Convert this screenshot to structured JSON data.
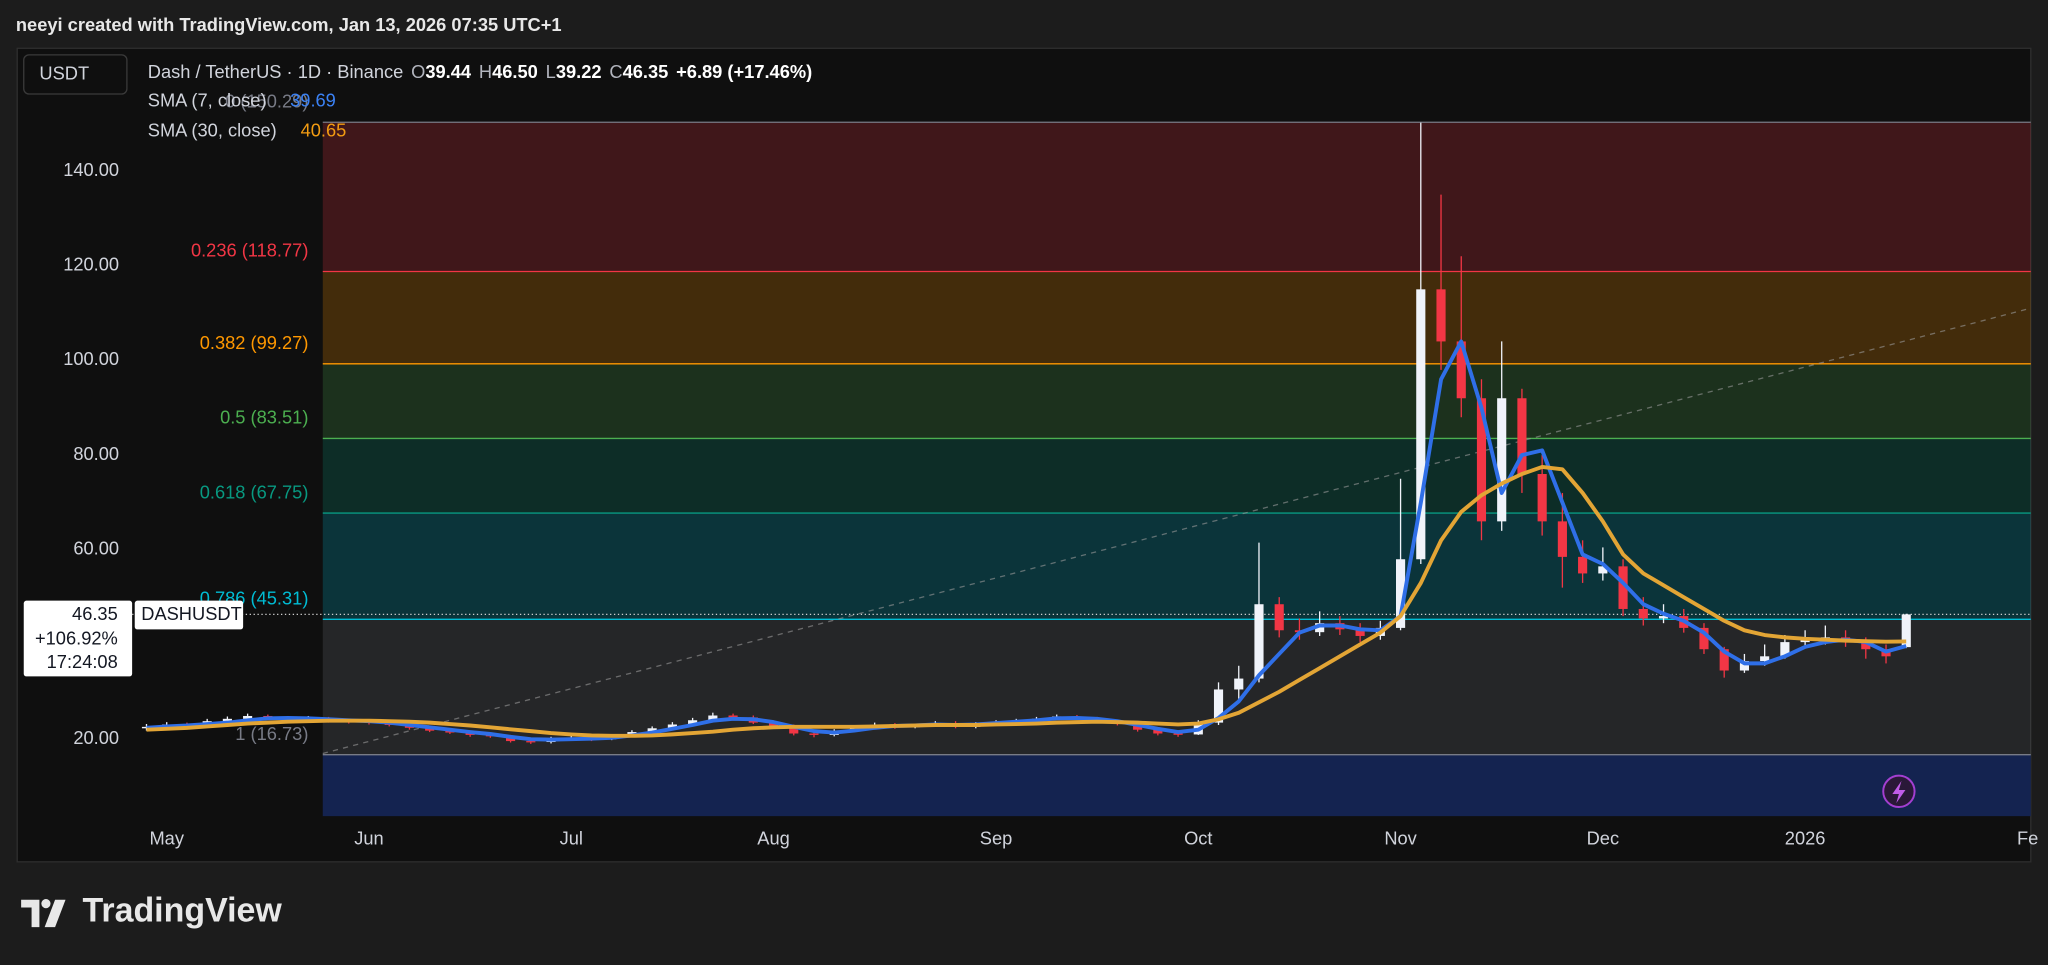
{
  "header": {
    "attribution": "neeyi created with TradingView.com, Jan 13, 2026 07:35 UTC+1"
  },
  "brand": "TradingView",
  "chart_data": {
    "type": "candlestick",
    "currency": "USDT",
    "title": "Dash / TetherUS · 1D · Binance",
    "ohlc_legend": [
      {
        "key": "O",
        "value": "39.44"
      },
      {
        "key": "H",
        "value": "46.50"
      },
      {
        "key": "L",
        "value": "39.22"
      },
      {
        "key": "C",
        "value": "46.35"
      }
    ],
    "change": "+6.89 (+17.46%)",
    "categories": [
      null,
      "May",
      null,
      null,
      null,
      null,
      null,
      null,
      null,
      null,
      null,
      "Jun",
      null,
      null,
      null,
      null,
      null,
      null,
      null,
      null,
      null,
      "Jul",
      null,
      null,
      null,
      null,
      null,
      null,
      null,
      null,
      null,
      "Aug",
      null,
      null,
      null,
      null,
      null,
      null,
      null,
      null,
      null,
      null,
      "Sep",
      null,
      null,
      null,
      null,
      null,
      null,
      null,
      null,
      null,
      "Oct",
      null,
      null,
      null,
      null,
      null,
      null,
      null,
      null,
      null,
      "Nov",
      null,
      null,
      null,
      null,
      null,
      null,
      null,
      null,
      null,
      "Dec",
      null,
      null,
      null,
      null,
      null,
      null,
      null,
      null,
      null,
      "2026",
      null,
      null,
      null,
      null,
      null,
      null,
      null,
      null,
      null,
      null,
      "Fe"
    ],
    "candles": {
      "name": "DASHUSDT",
      "up_color": "#f0f3fa",
      "down_color": "#f23645",
      "open": [
        22.3,
        22.6,
        23.1,
        22.9,
        23.8,
        24.3,
        24.9,
        24.6,
        24.2,
        24.4,
        23.9,
        23.7,
        23.5,
        23.0,
        22.4,
        21.8,
        21.4,
        20.9,
        20.6,
        19.6,
        19.4,
        20.1,
        20.3,
        20.0,
        20.6,
        21.5,
        22.3,
        23.1,
        24.0,
        25.0,
        24.6,
        23.5,
        22.8,
        21.2,
        20.9,
        21.7,
        22.6,
        23.0,
        22.5,
        22.9,
        23.4,
        22.6,
        23.3,
        23.6,
        23.9,
        24.3,
        24.8,
        24.4,
        23.8,
        23.2,
        22.0,
        21.2,
        21.0,
        23.5,
        30.5,
        32.8,
        48.5,
        43.0,
        42.6,
        44.5,
        43.2,
        41.8,
        43.5,
        58.0,
        115.0,
        104.0,
        92.0,
        66.0,
        92.0,
        76.0,
        66.0,
        58.5,
        55.0,
        56.5,
        47.5,
        45.5,
        46.0,
        43.5,
        39.0,
        34.5,
        36.5,
        37.5,
        40.5,
        41.0,
        41.5,
        40.5,
        39.0,
        39.44,
        null,
        null,
        null,
        null,
        null,
        null
      ],
      "high": [
        23.2,
        23.6,
        23.5,
        24.3,
        24.8,
        25.4,
        25.2,
        24.9,
        24.9,
        24.7,
        24.3,
        24.1,
        23.8,
        23.3,
        22.8,
        22.2,
        21.8,
        21.3,
        20.9,
        20.1,
        20.5,
        20.8,
        20.7,
        21.0,
        21.9,
        22.7,
        23.6,
        24.5,
        25.6,
        25.4,
        25.0,
        23.9,
        23.1,
        21.6,
        22.1,
        22.9,
        23.5,
        23.4,
        23.2,
        23.8,
        23.8,
        23.6,
        24.0,
        24.3,
        24.7,
        25.2,
        25.1,
        24.7,
        24.1,
        23.5,
        22.4,
        21.6,
        24.0,
        32.0,
        35.5,
        61.5,
        50.0,
        45.5,
        47.0,
        46.0,
        44.5,
        45.0,
        75.0,
        150.2,
        135.0,
        122.0,
        96.0,
        104.0,
        94.0,
        80.0,
        72.0,
        62.0,
        60.5,
        58.0,
        50.0,
        48.5,
        47.5,
        44.5,
        39.5,
        38.0,
        40.0,
        42.0,
        43.0,
        44.0,
        43.0,
        41.5,
        40.0,
        46.5,
        null,
        null,
        null,
        null,
        null,
        null
      ],
      "low": [
        21.8,
        22.2,
        22.5,
        22.6,
        23.5,
        24.0,
        24.3,
        24.0,
        23.9,
        23.5,
        23.3,
        23.1,
        22.7,
        22.0,
        21.5,
        21.1,
        20.5,
        20.3,
        19.3,
        19.0,
        19.1,
        19.8,
        19.6,
        19.8,
        20.4,
        21.2,
        22.0,
        22.8,
        23.7,
        24.2,
        23.2,
        22.5,
        20.8,
        20.4,
        20.6,
        21.5,
        22.3,
        22.2,
        22.3,
        22.7,
        22.3,
        22.3,
        23.0,
        23.3,
        23.7,
        24.1,
        24.1,
        23.5,
        22.9,
        21.6,
        20.8,
        20.5,
        20.9,
        23.0,
        28.5,
        32.0,
        41.5,
        41.0,
        41.8,
        42.0,
        40.5,
        41.0,
        43.0,
        57.0,
        98.0,
        88.0,
        62.0,
        64.0,
        72.0,
        63.0,
        52.0,
        53.0,
        53.5,
        46.0,
        44.0,
        44.5,
        42.5,
        38.0,
        33.0,
        34.0,
        35.5,
        37.0,
        39.5,
        40.0,
        39.5,
        37.0,
        36.0,
        39.22,
        null,
        null,
        null,
        null,
        null,
        null
      ],
      "close": [
        22.6,
        23.1,
        22.9,
        23.8,
        24.3,
        24.9,
        24.6,
        24.2,
        24.4,
        23.9,
        23.7,
        23.5,
        23.0,
        22.4,
        21.8,
        21.4,
        20.9,
        20.6,
        19.6,
        19.4,
        20.1,
        20.3,
        20.0,
        20.6,
        21.5,
        22.3,
        23.1,
        24.0,
        25.0,
        24.6,
        23.5,
        22.8,
        21.2,
        20.9,
        21.7,
        22.6,
        23.0,
        22.5,
        22.9,
        23.4,
        22.6,
        23.3,
        23.6,
        23.9,
        24.3,
        24.8,
        24.4,
        23.8,
        23.2,
        22.0,
        21.2,
        21.0,
        23.5,
        30.5,
        32.8,
        48.5,
        43.0,
        42.6,
        44.5,
        43.2,
        41.8,
        43.5,
        58.0,
        115.0,
        104.0,
        92.0,
        66.0,
        92.0,
        76.0,
        66.0,
        58.5,
        55.0,
        56.5,
        47.5,
        45.5,
        46.0,
        43.5,
        39.0,
        34.5,
        36.5,
        37.5,
        40.5,
        41.0,
        41.5,
        40.5,
        39.0,
        37.5,
        46.35,
        null,
        null,
        null,
        null,
        null,
        null
      ]
    },
    "series": [
      {
        "name": "SMA (7, close)",
        "color": "#2f6fe8",
        "values": [
          22.4,
          22.7,
          22.9,
          23.2,
          23.5,
          24.0,
          24.4,
          24.5,
          24.4,
          24.2,
          24.0,
          23.8,
          23.5,
          23.0,
          22.5,
          22.0,
          21.5,
          21.1,
          20.5,
          20.0,
          19.9,
          20.0,
          20.1,
          20.3,
          20.8,
          21.4,
          22.2,
          23.0,
          23.9,
          24.3,
          24.2,
          23.6,
          22.6,
          21.7,
          21.4,
          21.8,
          22.4,
          22.8,
          22.9,
          23.1,
          23.0,
          23.1,
          23.4,
          23.7,
          24.0,
          24.4,
          24.5,
          24.3,
          23.8,
          23.0,
          22.2,
          21.5,
          22.0,
          24.5,
          28.0,
          33.5,
          38.0,
          42.5,
          44.0,
          44.0,
          43.2,
          43.0,
          46.0,
          70.0,
          96.0,
          104.0,
          90.0,
          72.0,
          80.0,
          81.0,
          70.0,
          59.0,
          57.0,
          53.0,
          48.5,
          46.5,
          45.0,
          42.5,
          38.5,
          36.0,
          36.0,
          37.5,
          39.5,
          40.5,
          41.0,
          40.5,
          38.5,
          39.69,
          null,
          null,
          null,
          null,
          null,
          null
        ]
      },
      {
        "name": "SMA (30, close)",
        "color": "#e3a535",
        "values": [
          22.0,
          22.2,
          22.4,
          22.7,
          23.0,
          23.3,
          23.5,
          23.7,
          23.8,
          23.9,
          23.9,
          23.9,
          23.8,
          23.7,
          23.5,
          23.2,
          22.9,
          22.5,
          22.1,
          21.7,
          21.3,
          21.0,
          20.8,
          20.7,
          20.7,
          20.8,
          21.0,
          21.3,
          21.6,
          22.0,
          22.3,
          22.5,
          22.6,
          22.6,
          22.6,
          22.6,
          22.7,
          22.8,
          22.9,
          23.0,
          23.0,
          23.0,
          23.1,
          23.2,
          23.3,
          23.5,
          23.6,
          23.7,
          23.6,
          23.5,
          23.3,
          23.1,
          23.3,
          24.2,
          25.6,
          27.8,
          30.0,
          32.5,
          35.0,
          37.5,
          40.0,
          42.5,
          46.0,
          53.0,
          62.0,
          68.0,
          71.5,
          74.0,
          76.0,
          77.5,
          77.0,
          72.0,
          66.0,
          59.0,
          55.0,
          52.5,
          50.0,
          47.5,
          45.0,
          43.0,
          42.0,
          41.5,
          41.2,
          41.0,
          40.8,
          40.7,
          40.6,
          40.65,
          null,
          null,
          null,
          null,
          null,
          null
        ]
      }
    ],
    "fib_levels": [
      {
        "label": "0 (150.29)",
        "price": 150.29,
        "color": "#787b86"
      },
      {
        "label": "0.236 (118.77)",
        "price": 118.77,
        "color": "#f23645"
      },
      {
        "label": "0.382 (99.27)",
        "price": 99.27,
        "color": "#ff9800"
      },
      {
        "label": "0.5 (83.51)",
        "price": 83.51,
        "color": "#4caf50"
      },
      {
        "label": "0.618 (67.75)",
        "price": 67.75,
        "color": "#089981"
      },
      {
        "label": "0.786 (45.31)",
        "price": 45.31,
        "color": "#00bcd4"
      },
      {
        "label": "1 (16.73)",
        "price": 16.73,
        "color": "#787b86"
      }
    ],
    "last_price": {
      "symbol": "DASHUSDT",
      "value": 46.35,
      "change": "+106.92%",
      "countdown": "17:24:08"
    },
    "ylim": [
      4.3,
      165.9
    ],
    "yticks": [
      {
        "value": 140,
        "label": "140.00"
      },
      {
        "value": 120,
        "label": "120.00"
      },
      {
        "value": 100,
        "label": "100.00"
      },
      {
        "value": 80,
        "label": "80.00"
      },
      {
        "value": 60,
        "label": "60.00"
      },
      {
        "value": 20,
        "label": "20.00"
      }
    ]
  }
}
